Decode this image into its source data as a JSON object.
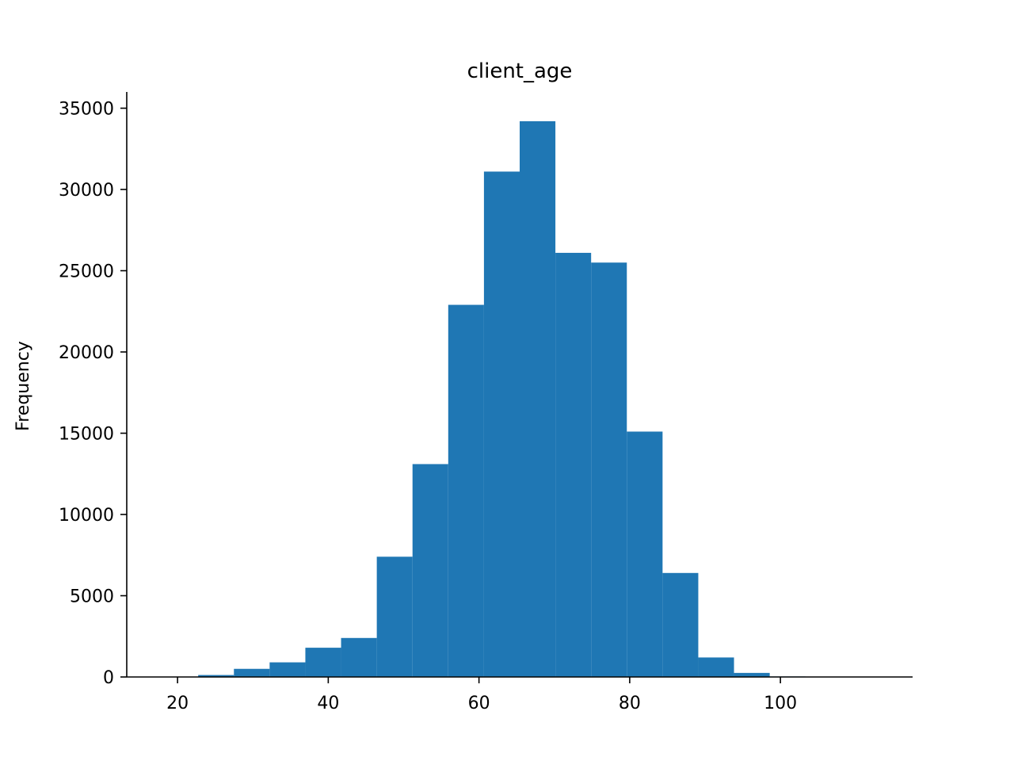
{
  "chart_data": {
    "type": "bar",
    "title": "client_age",
    "xlabel": "",
    "ylabel": "Frequency",
    "bar_color": "#1f77b4",
    "bin_edges": [
      18.0,
      22.74,
      27.48,
      32.22,
      36.96,
      41.7,
      46.44,
      51.18,
      55.92,
      60.66,
      65.4,
      70.14,
      74.88,
      79.62,
      84.36,
      89.1,
      93.84,
      98.58,
      103.32,
      108.06,
      112.8
    ],
    "values": [
      10,
      120,
      500,
      900,
      1800,
      2400,
      7400,
      13100,
      22900,
      31100,
      34200,
      26100,
      25500,
      15100,
      6400,
      1200,
      250,
      30,
      5,
      2
    ],
    "xlim": [
      13.26,
      117.54
    ],
    "ylim": [
      0,
      36000
    ],
    "xticks": [
      20,
      40,
      60,
      80,
      100
    ],
    "yticks": [
      0,
      5000,
      10000,
      15000,
      20000,
      25000,
      30000,
      35000
    ],
    "grid": false,
    "spines": {
      "top": false,
      "right": false
    }
  }
}
